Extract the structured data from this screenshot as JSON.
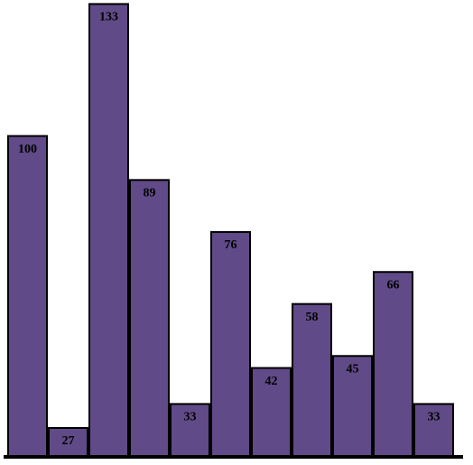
{
  "chart_data": {
    "type": "bar",
    "categories": [
      null,
      null,
      null,
      null,
      null,
      null,
      null,
      null,
      null,
      null,
      null
    ],
    "values": [
      100,
      27,
      133,
      89,
      33,
      76,
      42,
      58,
      45,
      66,
      33
    ],
    "color": "#604a87",
    "ylim": [
      20,
      134
    ]
  }
}
